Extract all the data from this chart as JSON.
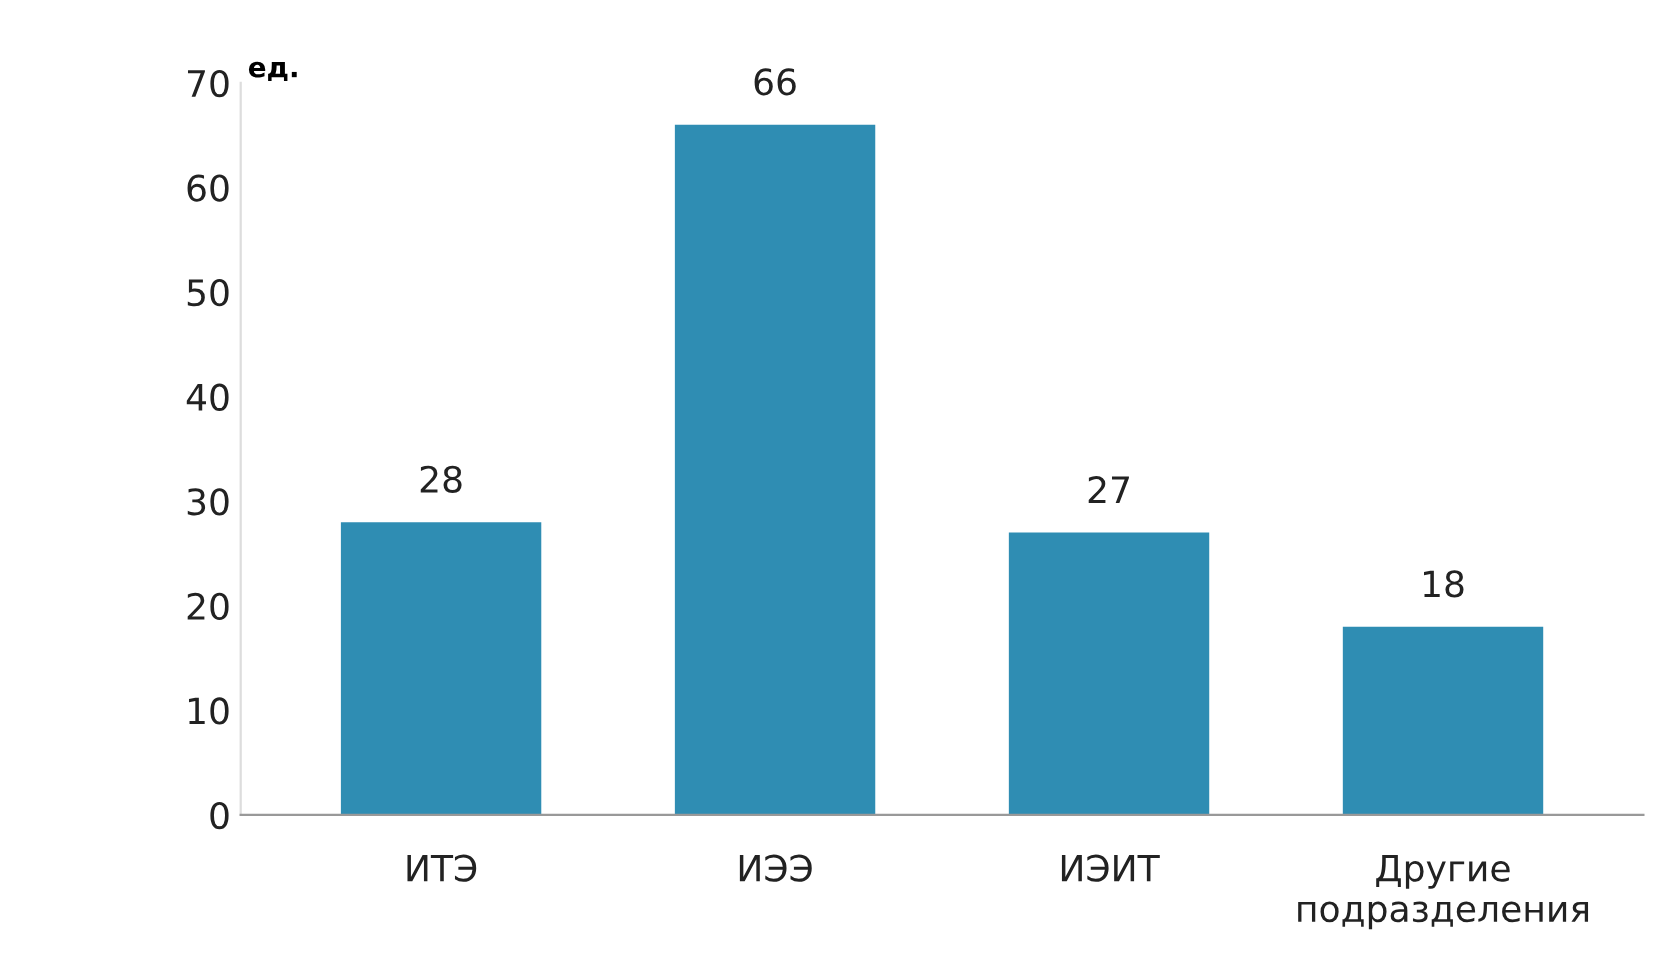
{
  "chart_data": {
    "type": "bar",
    "ylabel": "ед.",
    "categories": [
      "ИТЭ",
      "ИЭЭ",
      "ИЭИТ",
      "Другие\nподразделения"
    ],
    "values": [
      28,
      66,
      27,
      18
    ],
    "color": "#2f8db3",
    "ylim": [
      0,
      70
    ],
    "yticks": [
      0,
      10,
      20,
      30,
      40,
      50,
      60,
      70
    ],
    "grid": false,
    "data_labels": true
  }
}
